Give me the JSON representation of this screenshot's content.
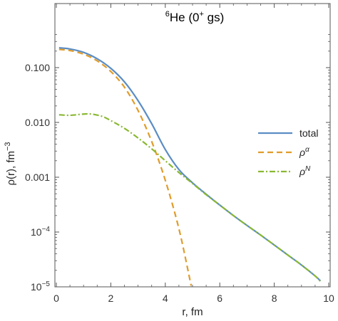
{
  "chart_data": {
    "type": "line",
    "title": {
      "sup": "6",
      "main": "He (0",
      "sup2": "+",
      "tail": " gs)"
    },
    "xlabel": "r, fm",
    "ylabel": {
      "main": "ρ(r), fm",
      "sup": "−3"
    },
    "xlim": [
      0,
      10
    ],
    "ylim": [
      1e-05,
      0.4
    ],
    "yscale": "log",
    "grid": false,
    "legend_position": "right",
    "x_ticks": [
      {
        "value": 0,
        "label": "0"
      },
      {
        "value": 2,
        "label": "2"
      },
      {
        "value": 4,
        "label": "4"
      },
      {
        "value": 6,
        "label": "6"
      },
      {
        "value": 8,
        "label": "8"
      },
      {
        "value": 10,
        "label": "10"
      }
    ],
    "y_ticks": [
      {
        "value": 0.1,
        "label": "0.100"
      },
      {
        "value": 0.01,
        "label": "0.010"
      },
      {
        "value": 0.001,
        "label": "0.001"
      },
      {
        "value": 0.0001,
        "base": "10",
        "exp": "−4"
      },
      {
        "value": 1e-05,
        "base": "10",
        "exp": "−5"
      }
    ],
    "series": [
      {
        "name": "total",
        "color": "#5b8dc4",
        "style": "solid",
        "points": [
          [
            0.1,
            0.23
          ],
          [
            0.5,
            0.219
          ],
          [
            1,
            0.19
          ],
          [
            1.5,
            0.145
          ],
          [
            2,
            0.097
          ],
          [
            2.5,
            0.055
          ],
          [
            3,
            0.025
          ],
          [
            3.5,
            0.0095
          ],
          [
            4,
            0.0032
          ],
          [
            4.5,
            0.00138
          ],
          [
            5,
            0.00079
          ],
          [
            5.5,
            0.00049
          ],
          [
            6,
            0.00031
          ],
          [
            6.5,
            0.0002
          ],
          [
            7,
            0.000132
          ],
          [
            7.5,
            8.8e-05
          ],
          [
            8,
            5.8e-05
          ],
          [
            8.5,
            3.8e-05
          ],
          [
            9,
            2.5e-05
          ],
          [
            9.5,
            1.58e-05
          ],
          [
            9.7,
            1.28e-05
          ]
        ]
      },
      {
        "name": "ρ",
        "name_sup": "α",
        "color": "#e09c2a",
        "style": "dashed",
        "points": [
          [
            0.1,
            0.215
          ],
          [
            0.5,
            0.205
          ],
          [
            1,
            0.176
          ],
          [
            1.5,
            0.133
          ],
          [
            2,
            0.085
          ],
          [
            2.5,
            0.044
          ],
          [
            3,
            0.0165
          ],
          [
            3.5,
            0.0045
          ],
          [
            4,
            0.00088
          ],
          [
            4.5,
            0.000115
          ],
          [
            4.9,
            1.38e-05
          ],
          [
            4.95,
            1.05e-05
          ]
        ]
      },
      {
        "name": "ρ",
        "name_sup": "N",
        "color": "#8ab833",
        "style": "dashdot",
        "points": [
          [
            0.1,
            0.0138
          ],
          [
            0.5,
            0.0135
          ],
          [
            1,
            0.0142
          ],
          [
            1.3,
            0.0142
          ],
          [
            1.7,
            0.0128
          ],
          [
            2,
            0.0108
          ],
          [
            2.5,
            0.0078
          ],
          [
            3,
            0.0052
          ],
          [
            3.5,
            0.0033
          ],
          [
            4,
            0.002
          ],
          [
            4.5,
            0.00122
          ],
          [
            5,
            0.00077
          ],
          [
            5.5,
            0.00048
          ],
          [
            6,
            0.00031
          ],
          [
            6.5,
            0.0002
          ],
          [
            7,
            0.000132
          ],
          [
            7.5,
            8.8e-05
          ],
          [
            8,
            5.8e-05
          ],
          [
            8.5,
            3.8e-05
          ],
          [
            9,
            2.5e-05
          ],
          [
            9.5,
            1.58e-05
          ],
          [
            9.7,
            1.25e-05
          ]
        ]
      }
    ]
  }
}
